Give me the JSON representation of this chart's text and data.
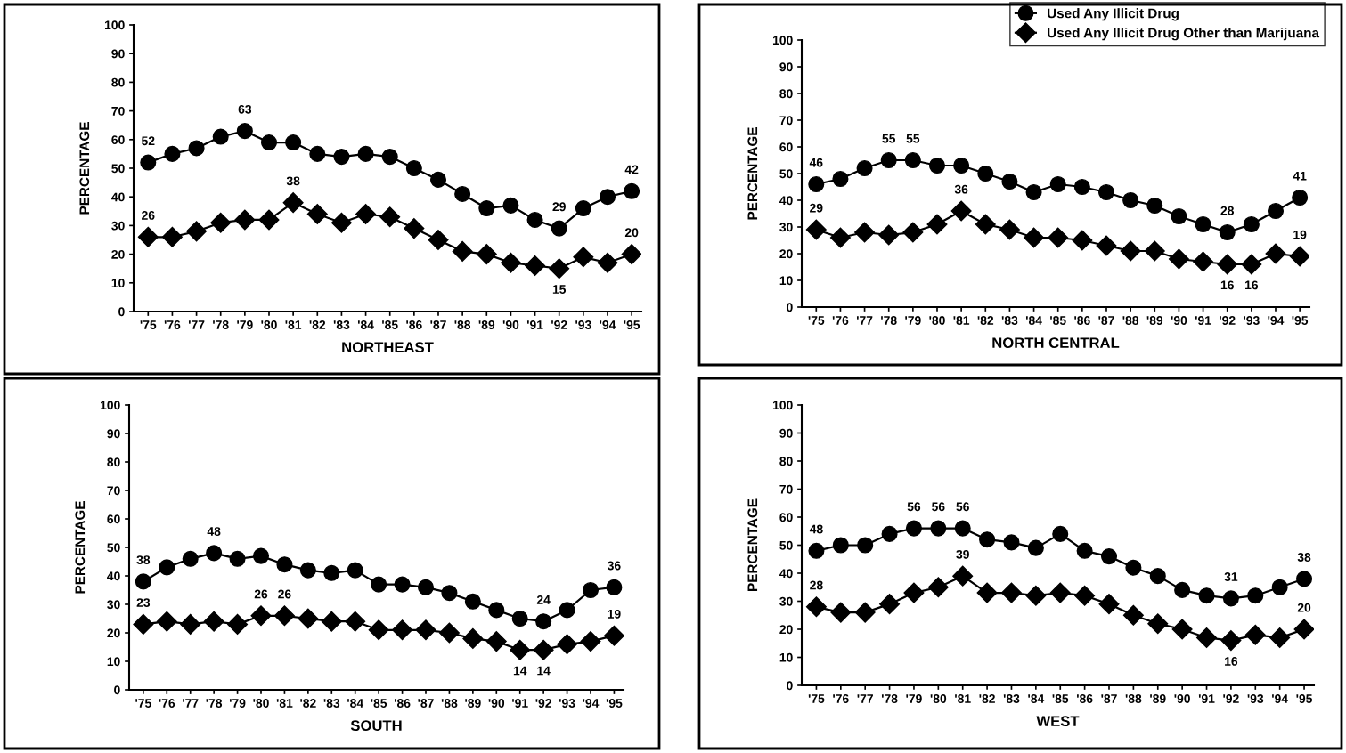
{
  "chart_data": [
    {
      "type": "line",
      "xlabel": "NORTHEAST",
      "ylabel": "PERCENTAGE",
      "categories": [
        "'75",
        "'76",
        "'77",
        "'78",
        "'79",
        "'80",
        "'81",
        "'82",
        "'83",
        "'84",
        "'85",
        "'86",
        "'87",
        "'88",
        "'89",
        "'90",
        "'91",
        "'92",
        "'93",
        "'94",
        "'95"
      ],
      "ylim": [
        0,
        100
      ],
      "yticks": [
        0,
        10,
        20,
        30,
        40,
        50,
        60,
        70,
        80,
        90,
        100
      ],
      "grid": false,
      "legend": false,
      "series": [
        {
          "color": "#000000",
          "marker": "circle",
          "values": [
            52,
            55,
            57,
            61,
            63,
            59,
            59,
            55,
            54,
            55,
            54,
            50,
            46,
            41,
            36,
            37,
            32,
            29,
            36,
            40,
            42
          ],
          "value_labels": [
            "52",
            null,
            null,
            null,
            "63",
            null,
            null,
            null,
            null,
            null,
            null,
            null,
            null,
            null,
            null,
            null,
            null,
            "29",
            null,
            null,
            "42"
          ]
        },
        {
          "color": "#000000",
          "marker": "diamond",
          "values": [
            26,
            26,
            28,
            31,
            32,
            32,
            38,
            34,
            31,
            34,
            33,
            29,
            25,
            21,
            20,
            17,
            16,
            15,
            19,
            17,
            20
          ],
          "value_labels": [
            "26",
            null,
            null,
            null,
            null,
            null,
            "38",
            null,
            null,
            null,
            null,
            null,
            null,
            null,
            null,
            null,
            null,
            "15",
            null,
            null,
            "20"
          ]
        }
      ]
    },
    {
      "type": "line",
      "xlabel": "NORTH CENTRAL",
      "ylabel": "PERCENTAGE",
      "categories": [
        "'75",
        "'76",
        "'77",
        "'78",
        "'79",
        "'80",
        "'81",
        "'82",
        "'83",
        "'84",
        "'85",
        "'86",
        "'87",
        "'88",
        "'89",
        "'90",
        "'91",
        "'92",
        "'93",
        "'94",
        "'95"
      ],
      "ylim": [
        0,
        100
      ],
      "yticks": [
        0,
        10,
        20,
        30,
        40,
        50,
        60,
        70,
        80,
        90,
        100
      ],
      "grid": false,
      "legend": "top right",
      "series": [
        {
          "name": "Used Any Illicit Drug",
          "color": "#000000",
          "marker": "circle",
          "values": [
            46,
            48,
            52,
            55,
            55,
            53,
            53,
            50,
            47,
            43,
            46,
            45,
            43,
            40,
            38,
            34,
            31,
            28,
            31,
            36,
            41
          ],
          "value_labels": [
            "46",
            null,
            null,
            "55",
            "55",
            null,
            null,
            null,
            null,
            null,
            null,
            null,
            null,
            null,
            null,
            null,
            null,
            "28",
            null,
            null,
            "41"
          ]
        },
        {
          "name": "Used Any Illicit Drug Other than Marijuana",
          "color": "#000000",
          "marker": "diamond",
          "values": [
            29,
            26,
            28,
            27,
            28,
            31,
            36,
            31,
            29,
            26,
            26,
            25,
            23,
            21,
            21,
            18,
            17,
            16,
            16,
            20,
            19
          ],
          "value_labels": [
            "29",
            null,
            null,
            null,
            null,
            null,
            "36",
            null,
            null,
            null,
            null,
            null,
            null,
            null,
            null,
            null,
            null,
            "16",
            "16",
            null,
            "19"
          ]
        }
      ]
    },
    {
      "type": "line",
      "xlabel": "SOUTH",
      "ylabel": "PERCENTAGE",
      "categories": [
        "'75",
        "'76",
        "'77",
        "'78",
        "'79",
        "'80",
        "'81",
        "'82",
        "'83",
        "'84",
        "'85",
        "'86",
        "'87",
        "'88",
        "'89",
        "'90",
        "'91",
        "'92",
        "'93",
        "'94",
        "'95"
      ],
      "ylim": [
        0,
        100
      ],
      "yticks": [
        0,
        10,
        20,
        30,
        40,
        50,
        60,
        70,
        80,
        90,
        100
      ],
      "grid": false,
      "legend": false,
      "series": [
        {
          "color": "#000000",
          "marker": "circle",
          "values": [
            38,
            43,
            46,
            48,
            46,
            47,
            44,
            42,
            41,
            42,
            37,
            37,
            36,
            34,
            31,
            28,
            25,
            24,
            28,
            35,
            36
          ],
          "value_labels": [
            "38",
            null,
            null,
            "48",
            null,
            null,
            null,
            null,
            null,
            null,
            null,
            null,
            null,
            null,
            null,
            null,
            null,
            "24",
            null,
            null,
            "36"
          ]
        },
        {
          "color": "#000000",
          "marker": "diamond",
          "values": [
            23,
            24,
            23,
            24,
            23,
            26,
            26,
            25,
            24,
            24,
            21,
            21,
            21,
            20,
            18,
            17,
            14,
            14,
            16,
            17,
            19
          ],
          "value_labels": [
            "23",
            null,
            null,
            null,
            null,
            "26",
            "26",
            null,
            null,
            null,
            null,
            null,
            null,
            null,
            null,
            null,
            "14",
            "14",
            null,
            null,
            "19"
          ]
        }
      ]
    },
    {
      "type": "line",
      "xlabel": "WEST",
      "ylabel": "PERCENTAGE",
      "categories": [
        "'75",
        "'76",
        "'77",
        "'78",
        "'79",
        "'80",
        "'81",
        "'82",
        "'83",
        "'84",
        "'85",
        "'86",
        "'87",
        "'88",
        "'89",
        "'90",
        "'91",
        "'92",
        "'93",
        "'94",
        "'95"
      ],
      "ylim": [
        0,
        100
      ],
      "yticks": [
        0,
        10,
        20,
        30,
        40,
        50,
        60,
        70,
        80,
        90,
        100
      ],
      "grid": false,
      "legend": false,
      "series": [
        {
          "color": "#000000",
          "marker": "circle",
          "values": [
            48,
            50,
            50,
            54,
            56,
            56,
            56,
            52,
            51,
            49,
            54,
            48,
            46,
            42,
            39,
            34,
            32,
            31,
            32,
            35,
            38
          ],
          "value_labels": [
            "48",
            null,
            null,
            null,
            "56",
            "56",
            "56",
            null,
            null,
            null,
            null,
            null,
            null,
            null,
            null,
            null,
            null,
            "31",
            null,
            null,
            "38"
          ]
        },
        {
          "color": "#000000",
          "marker": "diamond",
          "values": [
            28,
            26,
            26,
            29,
            33,
            35,
            39,
            33,
            33,
            32,
            33,
            32,
            29,
            25,
            22,
            20,
            17,
            16,
            18,
            17,
            20
          ],
          "value_labels": [
            "28",
            null,
            null,
            null,
            null,
            null,
            "39",
            null,
            null,
            null,
            null,
            null,
            null,
            null,
            null,
            null,
            null,
            "16",
            null,
            null,
            "20"
          ]
        }
      ]
    }
  ]
}
